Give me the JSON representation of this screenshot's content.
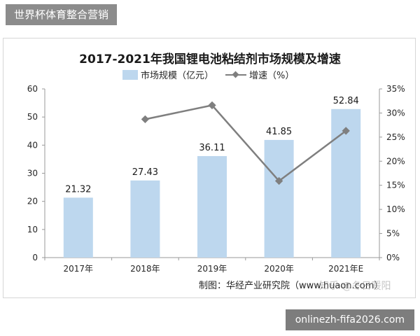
{
  "header_tag": "世界杯体育整合营销",
  "footer_url": "onlinezh-fifa2026.com",
  "watermark": "知乎 @冬日暖阳",
  "source": "制图：华经产业研究院（www.huaon.com）",
  "colors": {
    "bar": "#bdd7ee",
    "line": "#7f7f7f",
    "marker": "#7f7f7f"
  },
  "chart_data": {
    "type": "bar+line",
    "title": "2017-2021年我国锂电池粘结剂市场规模及增速",
    "categories": [
      "2017年",
      "2018年",
      "2019年",
      "2020年",
      "2021年E"
    ],
    "series": [
      {
        "name": "市场规模（亿元）",
        "type": "bar",
        "axis": "left",
        "values": [
          21.32,
          27.43,
          36.11,
          41.85,
          52.84
        ],
        "labels": [
          "21.32",
          "27.43",
          "36.11",
          "41.85",
          "52.84"
        ]
      },
      {
        "name": "增速（%）",
        "type": "line",
        "axis": "right",
        "values": [
          null,
          28.7,
          31.6,
          15.9,
          26.3
        ]
      }
    ],
    "left_axis": {
      "ylim": [
        0,
        60
      ],
      "ticks": [
        "0",
        "10",
        "20",
        "30",
        "40",
        "50",
        "60"
      ]
    },
    "right_axis": {
      "ylim": [
        0,
        35
      ],
      "ticks": [
        "0%",
        "5%",
        "10%",
        "15%",
        "20%",
        "25%",
        "30%",
        "35%"
      ]
    },
    "legend_position": "top-center",
    "grid": false
  }
}
